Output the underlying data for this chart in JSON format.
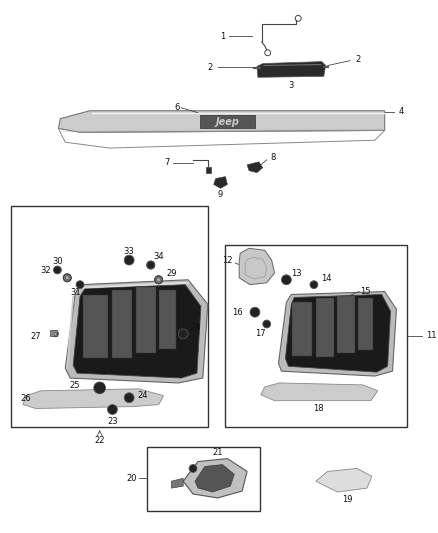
{
  "bg_color": "#ffffff",
  "fig_width": 4.38,
  "fig_height": 5.33,
  "dpi": 100,
  "label_fs": 6.0,
  "line_color": "#444444",
  "dark_fill": "#2a2a2a",
  "grey_fill": "#aaaaaa",
  "light_fill": "#dddddd",
  "mid_fill": "#666666"
}
